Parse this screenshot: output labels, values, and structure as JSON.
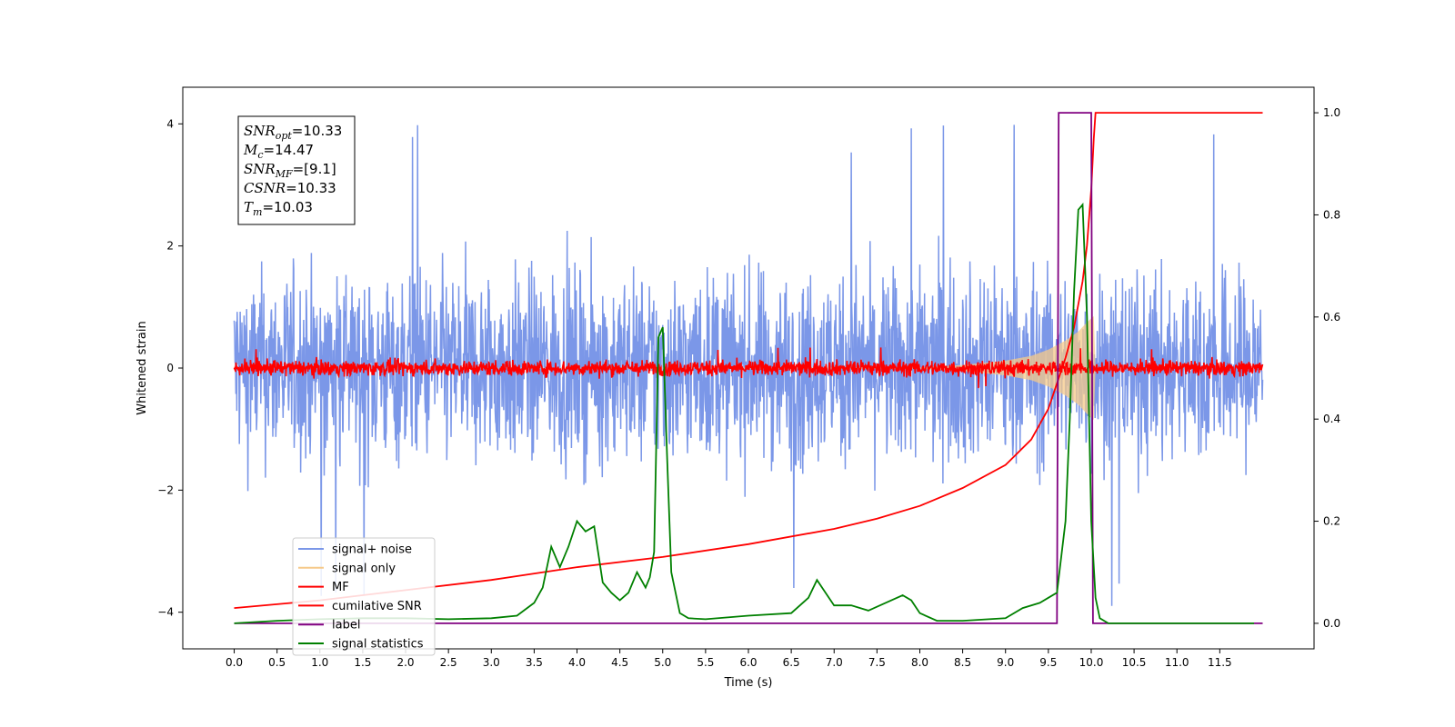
{
  "chart_data": {
    "type": "line",
    "xlabel": "Time (s)",
    "ylabel_left": "Whitened strain",
    "ylabel_right": "",
    "xlim": [
      -0.6,
      12.6
    ],
    "ylim_left": [
      -4.6,
      4.6
    ],
    "ylim_right": [
      -0.05,
      1.05
    ],
    "x_ticks": [
      0.0,
      0.5,
      1.0,
      1.5,
      2.0,
      2.5,
      3.0,
      3.5,
      4.0,
      4.5,
      5.0,
      5.5,
      6.0,
      6.5,
      7.0,
      7.5,
      8.0,
      8.5,
      9.0,
      9.5,
      10.0,
      10.5,
      11.0,
      11.5
    ],
    "x_tick_labels": [
      "0.0",
      "0.5",
      "1.0",
      "1.5",
      "2.0",
      "2.5",
      "3.0",
      "3.5",
      "4.0",
      "4.5",
      "5.0",
      "5.5",
      "6.0",
      "6.5",
      "7.0",
      "7.5",
      "8.0",
      "8.5",
      "9.0",
      "9.5",
      "10.0",
      "10.5",
      "11.0",
      "11.5"
    ],
    "y_left_ticks": [
      -4,
      -2,
      0,
      2,
      4
    ],
    "y_left_tick_labels": [
      "−4",
      "−2",
      "0",
      "2",
      "4"
    ],
    "y_right_ticks": [
      0.0,
      0.2,
      0.4,
      0.6,
      0.8,
      1.0
    ],
    "y_right_tick_labels": [
      "0.0",
      "0.2",
      "0.4",
      "0.6",
      "0.8",
      "1.0"
    ],
    "grid": false,
    "legend_position": "lower-left",
    "annotation": {
      "lines": [
        {
          "sym": "SNR",
          "sub": "opt",
          "value": "=10.33"
        },
        {
          "sym": "M",
          "sub": "c",
          "value": "=14.47"
        },
        {
          "sym": "SNR",
          "sub": "MF",
          "value": "=[9.1]"
        },
        {
          "sym": "CSNR",
          "sub": "",
          "value": "=10.33"
        },
        {
          "sym": "T",
          "sub": "m",
          "value": "=10.03"
        }
      ]
    },
    "series": [
      {
        "name": "signal+ noise",
        "axis": "left",
        "color": "#7b97e8",
        "kind": "noise",
        "x_range": [
          0.0,
          12.0
        ],
        "amplitude": 1.1,
        "peak": 4.15
      },
      {
        "name": "signal only",
        "axis": "left",
        "color": "#f6c98a",
        "kind": "chirp",
        "x": [
          0.0,
          8.0,
          8.5,
          9.0,
          9.3,
          9.5,
          9.7,
          9.85,
          9.95,
          10.03,
          10.05
        ],
        "y": [
          0.0,
          0.01,
          0.05,
          0.12,
          0.2,
          0.3,
          0.45,
          0.6,
          0.75,
          0.85,
          0.0
        ]
      },
      {
        "name": "MF",
        "axis": "left",
        "color": "#ff0000",
        "kind": "noise",
        "x_range": [
          0.0,
          12.0
        ],
        "amplitude": 0.09,
        "peak": 0.35
      },
      {
        "name": "cumilative SNR",
        "axis": "right",
        "color": "#ff0000",
        "x": [
          0.0,
          1.0,
          2.0,
          3.0,
          4.0,
          5.0,
          6.0,
          7.0,
          7.5,
          8.0,
          8.5,
          9.0,
          9.3,
          9.5,
          9.6,
          9.7,
          9.8,
          9.9,
          9.95,
          10.0,
          10.03,
          10.05,
          10.1,
          12.0
        ],
        "y": [
          0.03,
          0.045,
          0.065,
          0.085,
          0.11,
          0.13,
          0.155,
          0.185,
          0.205,
          0.23,
          0.265,
          0.31,
          0.36,
          0.42,
          0.47,
          0.52,
          0.58,
          0.67,
          0.74,
          0.85,
          0.95,
          1.0,
          1.0,
          1.0
        ]
      },
      {
        "name": "label",
        "axis": "right",
        "color": "#800080",
        "x": [
          0.0,
          9.6,
          9.62,
          10.0,
          10.02,
          12.0
        ],
        "y": [
          0.0,
          0.0,
          1.0,
          1.0,
          0.0,
          0.0
        ]
      },
      {
        "name": "signal statistics",
        "axis": "right",
        "color": "#008000",
        "x": [
          0.0,
          0.5,
          1.0,
          1.5,
          2.0,
          2.5,
          3.0,
          3.3,
          3.5,
          3.6,
          3.7,
          3.8,
          3.9,
          4.0,
          4.1,
          4.2,
          4.3,
          4.4,
          4.5,
          4.6,
          4.7,
          4.8,
          4.85,
          4.9,
          4.95,
          5.0,
          5.05,
          5.1,
          5.2,
          5.3,
          5.5,
          6.0,
          6.5,
          6.7,
          6.8,
          6.9,
          7.0,
          7.2,
          7.4,
          7.6,
          7.8,
          7.9,
          8.0,
          8.2,
          8.5,
          9.0,
          9.2,
          9.4,
          9.5,
          9.6,
          9.7,
          9.75,
          9.8,
          9.85,
          9.9,
          9.95,
          10.0,
          10.05,
          10.1,
          10.2,
          11.0,
          11.5,
          11.9
        ],
        "y": [
          0.0,
          0.005,
          0.008,
          0.01,
          0.01,
          0.008,
          0.01,
          0.015,
          0.04,
          0.07,
          0.15,
          0.11,
          0.15,
          0.2,
          0.18,
          0.19,
          0.08,
          0.06,
          0.045,
          0.06,
          0.1,
          0.07,
          0.09,
          0.14,
          0.56,
          0.58,
          0.33,
          0.1,
          0.02,
          0.01,
          0.008,
          0.015,
          0.02,
          0.05,
          0.085,
          0.06,
          0.035,
          0.035,
          0.025,
          0.04,
          0.055,
          0.045,
          0.02,
          0.005,
          0.005,
          0.01,
          0.03,
          0.04,
          0.05,
          0.06,
          0.2,
          0.4,
          0.65,
          0.81,
          0.82,
          0.6,
          0.2,
          0.05,
          0.01,
          0.0,
          0.0,
          0.0,
          0.0
        ]
      }
    ]
  }
}
